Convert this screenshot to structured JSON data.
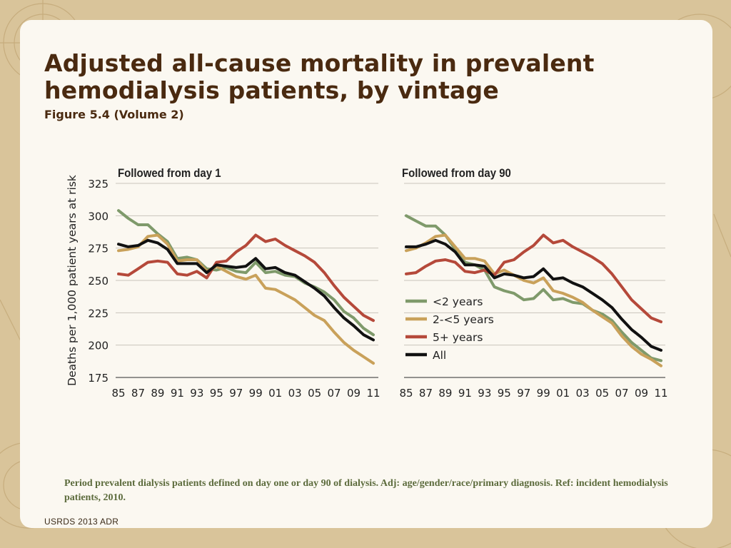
{
  "slide": {
    "title": "Adjusted all-cause mortality in prevalent hemodialysis patients, by vintage",
    "subtitle": "Figure 5.4 (Volume 2)",
    "footnote": "Period prevalent dialysis patients defined on day one or day 90 of dialysis. Adj: age/gender/race/primary diagnosis. Ref: incident hemodialysis patients, 2010.",
    "footer": "USRDS 2013 ADR"
  },
  "colors": {
    "lt2": "#7f9a6b",
    "y2to5": "#c9a15a",
    "y5plus": "#b5493a",
    "all": "#111111",
    "grid": "#c9c4bb",
    "text": "#222222"
  },
  "chart_data": [
    {
      "type": "line",
      "title": "Followed from day 1",
      "ylabel": "Deaths per 1,000 patient years at risk",
      "ylim": [
        175,
        325
      ],
      "yticks": [
        175,
        200,
        225,
        250,
        275,
        300,
        325
      ],
      "x": [
        1985,
        1986,
        1987,
        1988,
        1989,
        1990,
        1991,
        1992,
        1993,
        1994,
        1995,
        1996,
        1997,
        1998,
        1999,
        2000,
        2001,
        2002,
        2003,
        2004,
        2005,
        2006,
        2007,
        2008,
        2009,
        2010,
        2011
      ],
      "xticklabels": [
        "85",
        "87",
        "89",
        "91",
        "93",
        "95",
        "97",
        "99",
        "01",
        "03",
        "05",
        "07",
        "09",
        "11"
      ],
      "series": [
        {
          "name": "<2 years",
          "values": [
            304,
            298,
            293,
            293,
            286,
            280,
            267,
            268,
            266,
            259,
            258,
            260,
            257,
            256,
            264,
            256,
            257,
            254,
            253,
            248,
            245,
            241,
            235,
            226,
            221,
            213,
            208
          ]
        },
        {
          "name": "2-<5 years",
          "values": [
            273,
            274,
            276,
            284,
            285,
            278,
            265,
            266,
            266,
            257,
            261,
            257,
            253,
            251,
            254,
            244,
            243,
            239,
            235,
            229,
            223,
            219,
            210,
            202,
            196,
            191,
            186
          ]
        },
        {
          "name": "5+ years",
          "values": [
            255,
            254,
            259,
            264,
            265,
            264,
            255,
            254,
            257,
            252,
            264,
            265,
            272,
            277,
            285,
            280,
            282,
            277,
            273,
            269,
            264,
            256,
            246,
            237,
            230,
            223,
            219
          ]
        },
        {
          "name": "All",
          "values": [
            278,
            276,
            277,
            281,
            279,
            274,
            263,
            263,
            263,
            256,
            262,
            261,
            260,
            261,
            267,
            259,
            260,
            256,
            254,
            249,
            244,
            238,
            229,
            221,
            215,
            208,
            204
          ]
        }
      ]
    },
    {
      "type": "line",
      "title": "Followed from day 90",
      "ylabel": "",
      "ylim": [
        175,
        325
      ],
      "yticks": [
        175,
        200,
        225,
        250,
        275,
        300,
        325
      ],
      "x": [
        1985,
        1986,
        1987,
        1988,
        1989,
        1990,
        1991,
        1992,
        1993,
        1994,
        1995,
        1996,
        1997,
        1998,
        1999,
        2000,
        2001,
        2002,
        2003,
        2004,
        2005,
        2006,
        2007,
        2008,
        2009,
        2010,
        2011
      ],
      "xticklabels": [
        "85",
        "87",
        "89",
        "91",
        "93",
        "95",
        "97",
        "99",
        "01",
        "03",
        "05",
        "07",
        "09",
        "11"
      ],
      "legend": {
        "position": "center-left",
        "entries": [
          "<2 years",
          "2-<5 years",
          "5+ years",
          "All"
        ]
      },
      "series": [
        {
          "name": "<2 years",
          "values": [
            300,
            296,
            292,
            292,
            285,
            274,
            264,
            262,
            258,
            245,
            242,
            240,
            235,
            236,
            243,
            235,
            236,
            233,
            232,
            227,
            224,
            219,
            210,
            202,
            196,
            190,
            188
          ]
        },
        {
          "name": "2-<5 years",
          "values": [
            273,
            275,
            279,
            284,
            285,
            276,
            267,
            267,
            265,
            255,
            258,
            254,
            250,
            248,
            252,
            242,
            240,
            237,
            233,
            227,
            222,
            217,
            207,
            199,
            193,
            189,
            184
          ]
        },
        {
          "name": "5+ years",
          "values": [
            255,
            256,
            261,
            265,
            266,
            264,
            257,
            256,
            258,
            254,
            264,
            266,
            272,
            277,
            285,
            279,
            281,
            276,
            272,
            268,
            263,
            255,
            245,
            235,
            228,
            221,
            218
          ]
        },
        {
          "name": "All",
          "values": [
            276,
            276,
            278,
            281,
            278,
            272,
            262,
            262,
            261,
            252,
            255,
            254,
            252,
            253,
            259,
            251,
            252,
            248,
            245,
            240,
            235,
            229,
            220,
            212,
            206,
            199,
            196
          ]
        }
      ]
    }
  ]
}
